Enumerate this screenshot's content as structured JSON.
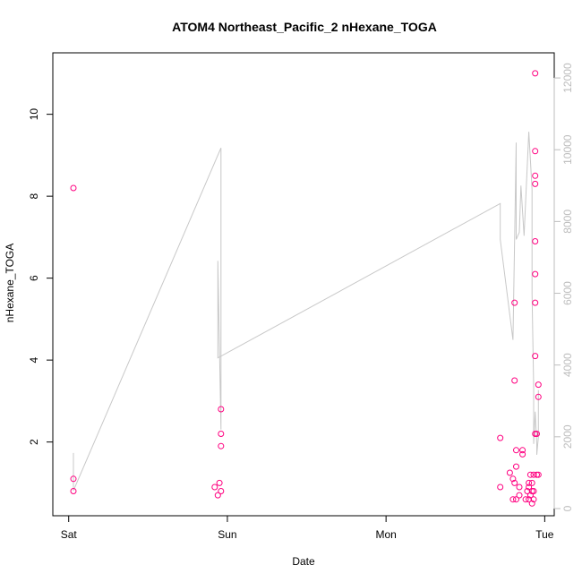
{
  "chart_data": {
    "type": "scatter",
    "title": "ATOM4 Northeast_Pacific_2 nHexane_TOGA",
    "xlabel": "Date",
    "ylabel": "nHexane_TOGA",
    "x_ticks": [
      {
        "t": 0,
        "label": "Sat"
      },
      {
        "t": 1,
        "label": "Sun"
      },
      {
        "t": 2,
        "label": "Mon"
      },
      {
        "t": 3,
        "label": "Tue"
      }
    ],
    "xlim": [
      -0.1,
      3.06
    ],
    "ylim": [
      0.2,
      11.5
    ],
    "y_ticks": [
      2,
      4,
      6,
      8,
      10
    ],
    "y2lim": [
      -200,
      12700
    ],
    "y2_ticks": [
      0,
      2000,
      4000,
      6000,
      8000,
      10000,
      12000
    ],
    "colors": {
      "points": "#ff0080",
      "line": "#c8c8c8",
      "right_axis": "#bdbdbd"
    },
    "series": [
      {
        "type": "points",
        "axis": "left",
        "values": [
          [
            0.03,
            8.2
          ],
          [
            0.03,
            1.1
          ],
          [
            0.03,
            0.8
          ],
          [
            0.92,
            0.9
          ],
          [
            0.94,
            0.7
          ],
          [
            0.95,
            1.0
          ],
          [
            0.96,
            0.8
          ],
          [
            0.96,
            2.8
          ],
          [
            0.96,
            2.2
          ],
          [
            0.96,
            1.9
          ],
          [
            2.72,
            2.1
          ],
          [
            2.72,
            0.9
          ],
          [
            2.78,
            1.25
          ],
          [
            2.8,
            1.1
          ],
          [
            2.8,
            0.6
          ],
          [
            2.81,
            1.0
          ],
          [
            2.81,
            5.4
          ],
          [
            2.81,
            3.5
          ],
          [
            2.82,
            1.8
          ],
          [
            2.82,
            1.4
          ],
          [
            2.82,
            0.6
          ],
          [
            2.84,
            0.9
          ],
          [
            2.84,
            0.7
          ],
          [
            2.86,
            1.7
          ],
          [
            2.86,
            1.8
          ],
          [
            2.88,
            0.6
          ],
          [
            2.89,
            0.8
          ],
          [
            2.9,
            0.9
          ],
          [
            2.9,
            0.6
          ],
          [
            2.9,
            1.0
          ],
          [
            2.91,
            1.2
          ],
          [
            2.91,
            0.7
          ],
          [
            2.92,
            0.5
          ],
          [
            2.92,
            0.8
          ],
          [
            2.92,
            1.0
          ],
          [
            2.93,
            1.2
          ],
          [
            2.93,
            0.6
          ],
          [
            2.93,
            0.8
          ],
          [
            2.94,
            11.0
          ],
          [
            2.94,
            9.1
          ],
          [
            2.94,
            8.5
          ],
          [
            2.94,
            8.3
          ],
          [
            2.94,
            6.9
          ],
          [
            2.94,
            6.1
          ],
          [
            2.94,
            5.4
          ],
          [
            2.94,
            4.1
          ],
          [
            2.94,
            2.2
          ],
          [
            2.95,
            2.2
          ],
          [
            2.95,
            1.2
          ],
          [
            2.96,
            3.4
          ],
          [
            2.96,
            3.1
          ],
          [
            2.96,
            1.2
          ]
        ]
      },
      {
        "type": "line",
        "axis": "right",
        "values": [
          [
            0.03,
            1550
          ],
          [
            0.03,
            500
          ],
          [
            0.96,
            10050
          ],
          [
            0.96,
            5700
          ],
          [
            0.96,
            2200
          ],
          [
            0.94,
            6900
          ],
          [
            0.94,
            4200
          ],
          [
            2.72,
            8500
          ],
          [
            2.72,
            7500
          ],
          [
            2.8,
            4700
          ],
          [
            2.82,
            10200
          ],
          [
            2.82,
            7500
          ],
          [
            2.84,
            7700
          ],
          [
            2.85,
            9000
          ],
          [
            2.87,
            7600
          ],
          [
            2.9,
            10500
          ],
          [
            2.92,
            8900
          ],
          [
            2.92,
            6000
          ],
          [
            2.93,
            3400
          ],
          [
            2.93,
            1800
          ],
          [
            2.94,
            2700
          ],
          [
            2.95,
            1800
          ],
          [
            2.95,
            1500
          ],
          [
            2.96,
            2000
          ],
          [
            2.96,
            3300
          ]
        ]
      }
    ]
  }
}
